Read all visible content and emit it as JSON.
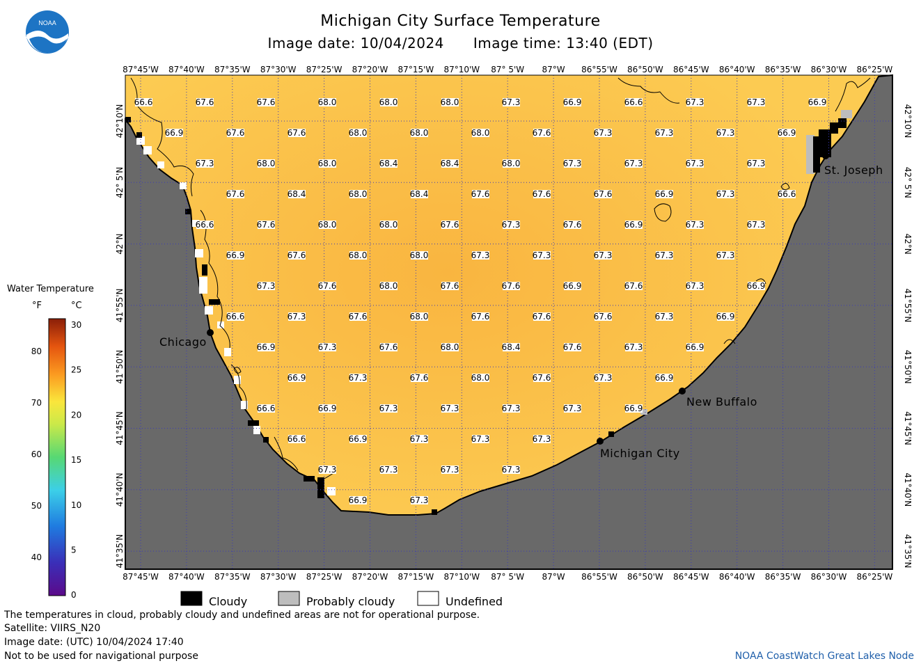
{
  "header": {
    "title": "Michigan City Surface Temperature",
    "image_date": "Image date: 10/04/2024",
    "image_time": "Image time: 13:40 (EDT)",
    "logo_text": "NOAA"
  },
  "axes": {
    "lon_labels": [
      "87°45'W",
      "87°40'W",
      "87°35'W",
      "87°30'W",
      "87°25'W",
      "87°20'W",
      "87°15'W",
      "87°10'W",
      "87° 5'W",
      "87°W",
      "86°55'W",
      "86°50'W",
      "86°45'W",
      "86°40'W",
      "86°35'W",
      "86°30'W",
      "86°25'W"
    ],
    "lat_labels": [
      "42°10'N",
      "42° 5'N",
      "42°N",
      "41°55'N",
      "41°50'N",
      "41°45'N",
      "41°40'N",
      "41°35'N"
    ]
  },
  "legend": {
    "title": "Water Temperature",
    "unit_f": "°F",
    "unit_c": "°C",
    "f_ticks": [
      "80",
      "70",
      "60",
      "50",
      "40"
    ],
    "c_ticks": [
      "30",
      "25",
      "20",
      "15",
      "10",
      "5",
      "0"
    ]
  },
  "cities": [
    {
      "name": "Chicago"
    },
    {
      "name": "Michigan City"
    },
    {
      "name": "New Buffalo"
    },
    {
      "name": "St. Joseph"
    }
  ],
  "temperatures": [
    [
      "66.6",
      "67.6",
      "67.6",
      "68.0",
      "68.0",
      "68.0",
      "67.3",
      "66.9",
      "66.6",
      "67.3",
      "67.3",
      "66.9"
    ],
    [
      "66.9",
      "67.6",
      "67.6",
      "68.0",
      "68.0",
      "68.0",
      "67.6",
      "67.3",
      "67.3",
      "67.3",
      "66.9"
    ],
    [
      "67.3",
      "68.0",
      "68.0",
      "68.4",
      "68.4",
      "68.0",
      "67.3",
      "67.3",
      "67.3",
      "67.3"
    ],
    [
      "67.6",
      "68.4",
      "68.0",
      "68.4",
      "67.6",
      "67.6",
      "67.6",
      "66.9",
      "67.3",
      "66.6"
    ],
    [
      "66.6",
      "67.6",
      "68.0",
      "68.0",
      "67.6",
      "67.3",
      "67.6",
      "66.9",
      "67.3",
      "67.3"
    ],
    [
      "66.9",
      "67.6",
      "68.0",
      "68.0",
      "67.3",
      "67.3",
      "67.3",
      "67.3",
      "67.3"
    ],
    [
      "67.3",
      "67.6",
      "68.0",
      "67.6",
      "67.6",
      "66.9",
      "67.6",
      "67.3",
      "66.9"
    ],
    [
      "66.6",
      "67.3",
      "67.6",
      "68.0",
      "67.6",
      "67.6",
      "67.6",
      "67.3",
      "66.9"
    ],
    [
      "66.9",
      "67.3",
      "67.6",
      "68.0",
      "68.4",
      "67.6",
      "67.3",
      "66.9"
    ],
    [
      "66.9",
      "67.3",
      "67.6",
      "68.0",
      "67.6",
      "67.3",
      "66.9"
    ],
    [
      "66.6",
      "66.9",
      "67.3",
      "67.3",
      "67.3",
      "67.3",
      "66.9"
    ],
    [
      "66.6",
      "66.9",
      "67.3",
      "67.3",
      "67.3"
    ],
    [
      "67.3",
      "67.3",
      "67.3",
      "67.3"
    ],
    [
      "66.9",
      "67.3"
    ]
  ],
  "key": {
    "cloudy": "Cloudy",
    "probably_cloudy": "Probably cloudy",
    "undefined": "Undefined"
  },
  "footer": {
    "disclaimer": "The temperatures in cloud, probably cloudy and undefined areas are not for operational purpose.",
    "satellite": "Satellite: VIIRS_N20",
    "utc_date": "Image date: (UTC) 10/04/2024  17:40",
    "nav_warning": "Not to be used for navigational purpose",
    "credit": "NOAA CoastWatch Great Lakes Node"
  },
  "colors": {
    "water": "#fcc84e",
    "land": "#696969",
    "probably_cloudy": "#bdbdbd",
    "credit": "#1f5faa"
  }
}
